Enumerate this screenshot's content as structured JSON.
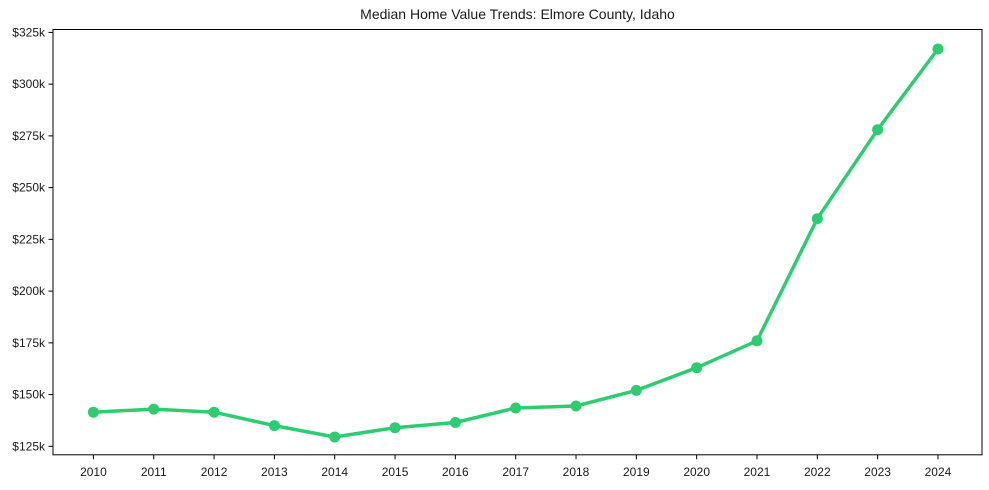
{
  "chart_data": {
    "type": "line",
    "title": "Median Home Value Trends: Elmore County, Idaho",
    "x": [
      2010,
      2011,
      2012,
      2013,
      2014,
      2015,
      2016,
      2017,
      2018,
      2019,
      2020,
      2021,
      2022,
      2023,
      2024
    ],
    "xtick_labels": [
      "2010",
      "2011",
      "2012",
      "2013",
      "2014",
      "2015",
      "2016",
      "2017",
      "2018",
      "2019",
      "2020",
      "2021",
      "2022",
      "2023",
      "2024"
    ],
    "yticks": {
      "values": [
        125000,
        150000,
        175000,
        200000,
        225000,
        250000,
        275000,
        300000,
        325000
      ],
      "labels": [
        "$125k",
        "$150k",
        "$175k",
        "$200k",
        "$225k",
        "$250k",
        "$275k",
        "$300k",
        "$325k"
      ]
    },
    "series": [
      {
        "name": "Median Home Value",
        "values": [
          141500,
          143000,
          141500,
          135000,
          129500,
          134000,
          136500,
          143500,
          144500,
          152000,
          163000,
          176000,
          235000,
          278000,
          317000
        ]
      }
    ],
    "xlim": [
      2009.33,
      2024.73
    ],
    "ylim": [
      120900,
      326400
    ],
    "xlabel": "",
    "ylabel": "",
    "grid": false,
    "legend": null,
    "line_color": "#2ecc71",
    "marker": "circle",
    "axis_color": "#000000",
    "text_color": "#1a1a1a",
    "background_color": "#ffffff"
  }
}
